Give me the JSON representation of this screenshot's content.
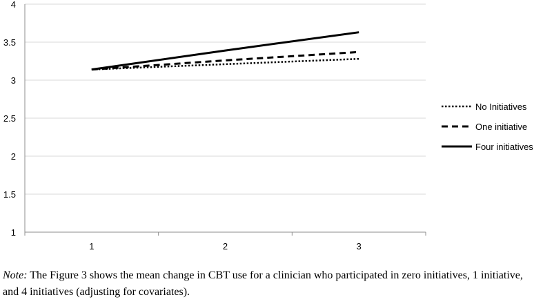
{
  "chart_data": {
    "type": "line",
    "title": "",
    "xlabel": "",
    "ylabel": "",
    "categories": [
      "1",
      "2",
      "3"
    ],
    "x": [
      1,
      2,
      3
    ],
    "ylim": [
      1,
      4
    ],
    "yticks": [
      "1",
      "1.5",
      "2",
      "2.5",
      "3",
      "3.5",
      "4"
    ],
    "grid": true,
    "legend_position": "right",
    "series": [
      {
        "name": "No Initiatives",
        "style": "dotted",
        "color": "#000000",
        "values": [
          3.14,
          3.21,
          3.28
        ]
      },
      {
        "name": "One initiative",
        "style": "dashed",
        "color": "#000000",
        "values": [
          3.14,
          3.26,
          3.37
        ]
      },
      {
        "name": "Four initiatives",
        "style": "solid",
        "color": "#000000",
        "values": [
          3.14,
          3.39,
          3.63
        ]
      }
    ]
  },
  "note": {
    "label": "Note:",
    "text": " The Figure 3 shows the mean change in CBT use for a clinician who participated in zero initiatives, 1 initiative, and 4 initiatives (adjusting for covariates)."
  }
}
